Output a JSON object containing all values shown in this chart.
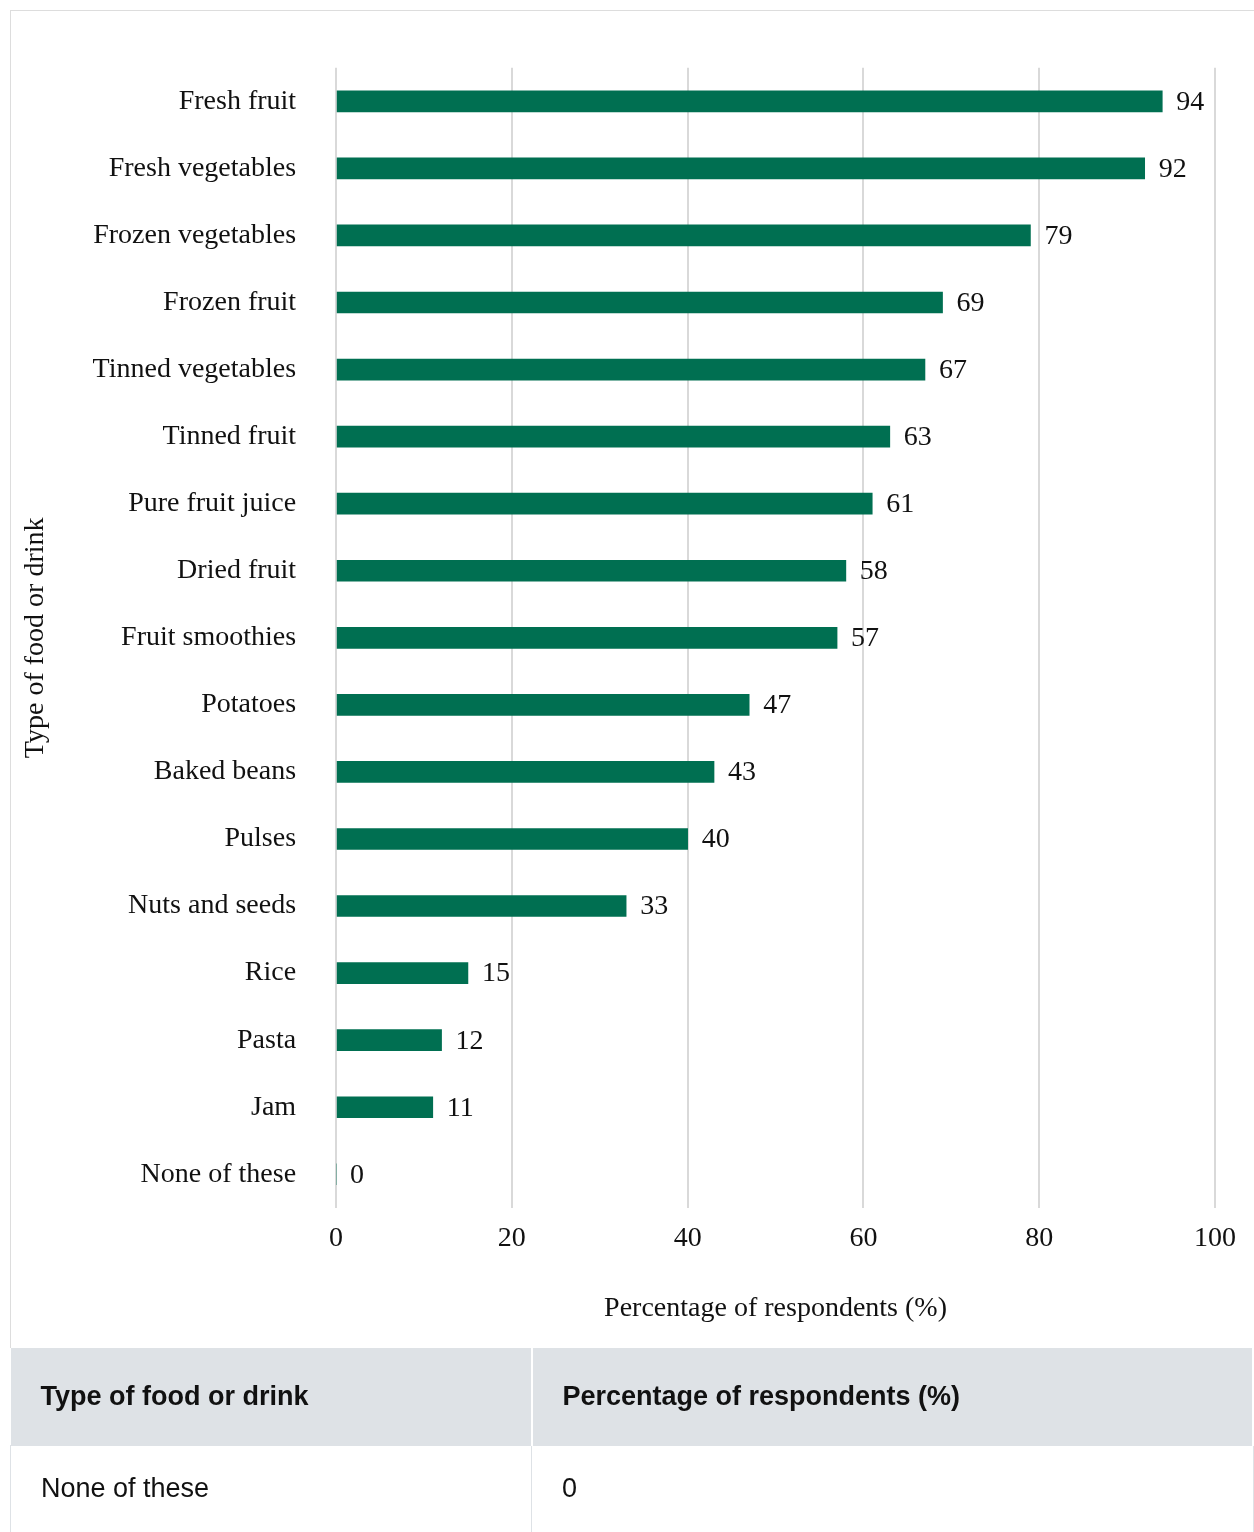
{
  "chart_data": {
    "type": "bar",
    "orientation": "horizontal",
    "xlabel": "Percentage of respondents (%)",
    "ylabel": "Type of food or drink",
    "categories": [
      "Fresh fruit",
      "Fresh vegetables",
      "Frozen vegetables",
      "Frozen fruit",
      "Tinned vegetables",
      "Tinned fruit",
      "Pure fruit juice",
      "Dried fruit",
      "Fruit smoothies",
      "Potatoes",
      "Baked beans",
      "Pulses",
      "Nuts and seeds",
      "Rice",
      "Pasta",
      "Jam",
      "None of these"
    ],
    "values": [
      94,
      92,
      79,
      69,
      67,
      63,
      61,
      58,
      57,
      47,
      43,
      40,
      33,
      15,
      12,
      11,
      0
    ],
    "color": "#006f51",
    "xlim": [
      0,
      100
    ],
    "xticks": [
      0,
      20,
      40,
      60,
      80,
      100
    ],
    "grid": "x",
    "data_labels": true,
    "legend": false,
    "annotations": [
      "None of these",
      "0"
    ]
  }
}
